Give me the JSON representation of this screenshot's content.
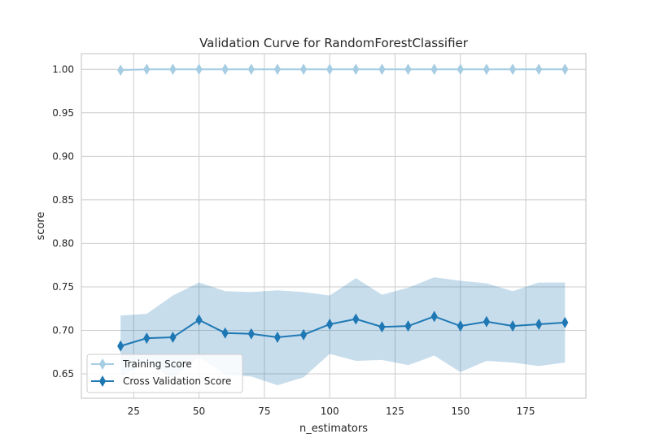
{
  "chart_data": {
    "type": "line",
    "title": "Validation Curve for RandomForestClassifier",
    "xlabel": "n_estimators",
    "ylabel": "score",
    "xlim": [
      5,
      198
    ],
    "ylim": [
      0.622,
      1.018
    ],
    "xticks": [
      25,
      50,
      75,
      100,
      125,
      150,
      175
    ],
    "yticks": [
      0.65,
      0.7,
      0.75,
      0.8,
      0.85,
      0.9,
      0.95,
      1.0
    ],
    "ytick_labels": [
      "0.65",
      "0.70",
      "0.75",
      "0.80",
      "0.85",
      "0.90",
      "0.95",
      "1.00"
    ],
    "grid": true,
    "legend_position": "lower-left",
    "x": [
      20,
      30,
      40,
      50,
      60,
      70,
      80,
      90,
      100,
      110,
      120,
      130,
      140,
      150,
      160,
      170,
      180,
      190
    ],
    "series": [
      {
        "name": "Training Score",
        "color": "#a6cde3",
        "values": [
          0.999,
          1.0,
          1.0,
          1.0,
          1.0,
          1.0,
          1.0,
          1.0,
          1.0,
          1.0,
          1.0,
          1.0,
          1.0,
          1.0,
          1.0,
          1.0,
          1.0,
          1.0
        ],
        "lower": [
          0.998,
          0.999,
          0.999,
          0.999,
          0.999,
          0.999,
          0.999,
          0.999,
          0.999,
          0.999,
          0.999,
          0.999,
          0.999,
          0.999,
          0.999,
          0.999,
          0.999,
          0.999
        ],
        "upper": [
          1.0,
          1.0,
          1.0,
          1.0,
          1.0,
          1.0,
          1.0,
          1.0,
          1.0,
          1.0,
          1.0,
          1.0,
          1.0,
          1.0,
          1.0,
          1.0,
          1.0,
          1.0
        ]
      },
      {
        "name": "Cross Validation Score",
        "color": "#1f78b4",
        "values": [
          0.682,
          0.691,
          0.692,
          0.712,
          0.697,
          0.696,
          0.692,
          0.695,
          0.707,
          0.713,
          0.704,
          0.705,
          0.716,
          0.705,
          0.71,
          0.705,
          0.707,
          0.709
        ],
        "lower": [
          0.647,
          0.663,
          0.645,
          0.669,
          0.649,
          0.647,
          0.637,
          0.646,
          0.673,
          0.665,
          0.666,
          0.66,
          0.671,
          0.652,
          0.665,
          0.663,
          0.659,
          0.663
        ],
        "upper": [
          0.717,
          0.719,
          0.74,
          0.755,
          0.745,
          0.744,
          0.746,
          0.744,
          0.74,
          0.76,
          0.741,
          0.749,
          0.761,
          0.757,
          0.754,
          0.745,
          0.755,
          0.755
        ]
      }
    ]
  }
}
